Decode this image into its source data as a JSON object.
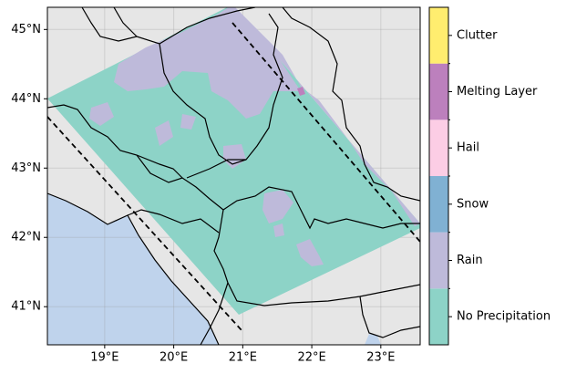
{
  "chart_data": {
    "type": "map",
    "xlim": [
      18.17,
      23.57
    ],
    "ylim": [
      40.45,
      45.32
    ],
    "xticks": [
      {
        "value": 19,
        "label": "19°E"
      },
      {
        "value": 20,
        "label": "20°E"
      },
      {
        "value": 21,
        "label": "21°E"
      },
      {
        "value": 22,
        "label": "22°E"
      },
      {
        "value": 23,
        "label": "23°E"
      }
    ],
    "yticks": [
      {
        "value": 41,
        "label": "41°N"
      },
      {
        "value": 42,
        "label": "42°N"
      },
      {
        "value": 43,
        "label": "43°N"
      },
      {
        "value": 44,
        "label": "44°N"
      },
      {
        "value": 45,
        "label": "45°N"
      }
    ],
    "grid": true,
    "colorbar": {
      "categories": [
        "No Precipitation",
        "Rain",
        "Snow",
        "Hail",
        "Melting Layer",
        "Clutter"
      ],
      "colors": [
        "#8dd3c7",
        "#bebada",
        "#80b1d3",
        "#fccde5",
        "#bc80bd",
        "#ffed6f"
      ]
    }
  }
}
